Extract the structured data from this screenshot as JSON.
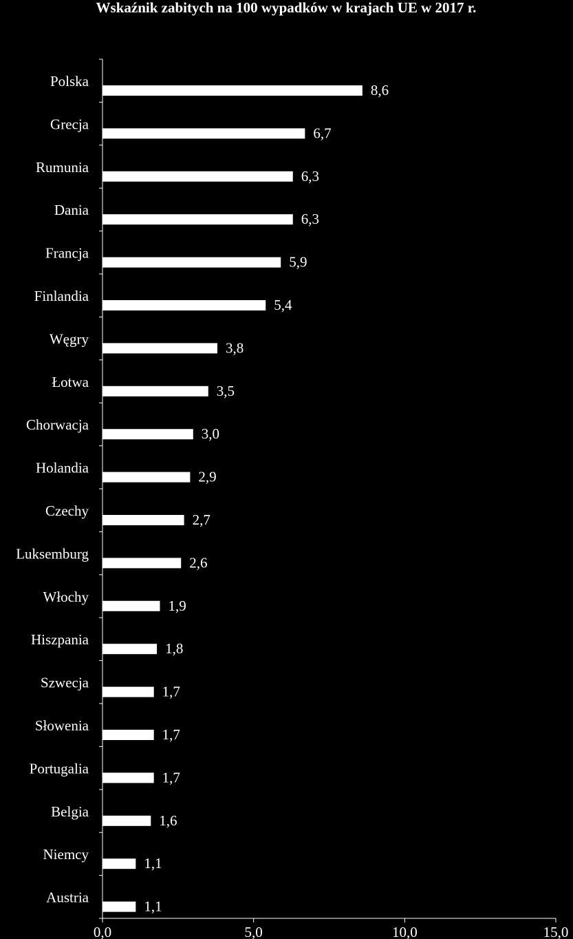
{
  "chart_data": {
    "type": "bar",
    "orientation": "horizontal",
    "title": "Wskaźnik zabitych na 100 wypadków w krajach UE w 2017 r.",
    "categories": [
      "Polska",
      "Grecja",
      "Rumunia",
      "Dania",
      "Francja",
      "Finlandia",
      "Węgry",
      "Łotwa",
      "Chorwacja",
      "Holandia",
      "Czechy",
      "Luksemburg",
      "Włochy",
      "Hiszpania",
      "Szwecja",
      "Słowenia",
      "Portugalia",
      "Belgia",
      "Niemcy",
      "Austria"
    ],
    "values": [
      8.6,
      6.7,
      6.3,
      6.3,
      5.9,
      5.4,
      3.8,
      3.5,
      3.0,
      2.9,
      2.7,
      2.6,
      1.9,
      1.8,
      1.7,
      1.7,
      1.7,
      1.6,
      1.1,
      1.1
    ],
    "value_labels": [
      "8,6",
      "6,7",
      "6,3",
      "6,3",
      "5,9",
      "5,4",
      "3,8",
      "3,5",
      "3,0",
      "2,9",
      "2,7",
      "2,6",
      "1,9",
      "1,8",
      "1,7",
      "1,7",
      "1,7",
      "1,6",
      "1,1",
      "1,1"
    ],
    "xlim": [
      0,
      15
    ],
    "xticks": [
      0,
      5,
      10,
      15
    ],
    "xtick_labels": [
      "0,0",
      "5,0",
      "10,0",
      "15,0"
    ],
    "grid": false,
    "colors": {
      "background": "#000000",
      "bar": "#ffffff",
      "axis": "#ffffff",
      "text": "#ffffff"
    }
  }
}
